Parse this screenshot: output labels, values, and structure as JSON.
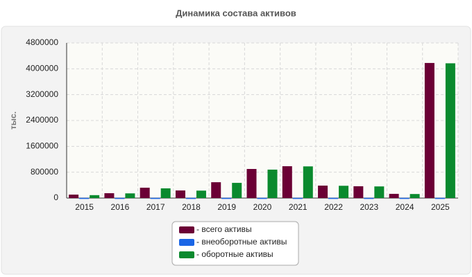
{
  "chart_data": {
    "type": "bar",
    "title": "Динамика состава активов",
    "y_label": "тыс.",
    "categories": [
      "2015",
      "2016",
      "2017",
      "2018",
      "2019",
      "2020",
      "2021",
      "2022",
      "2023",
      "2024",
      "2025"
    ],
    "series": [
      {
        "name": "- всего активы",
        "color": "#6b0035",
        "values": [
          107000,
          150000,
          320000,
          235000,
          490000,
          900000,
          985000,
          385000,
          365000,
          130000,
          4180000
        ]
      },
      {
        "name": "- внеоборотные активы",
        "color": "#1a66e6",
        "values": [
          5000,
          5000,
          5000,
          5000,
          5000,
          5000,
          5000,
          5000,
          5000,
          5000,
          5000
        ]
      },
      {
        "name": "- оборотные активы",
        "color": "#0a8a2e",
        "values": [
          90000,
          145000,
          300000,
          230000,
          470000,
          880000,
          980000,
          380000,
          360000,
          125000,
          4170000
        ]
      }
    ],
    "ylim": [
      0,
      4800000
    ],
    "yticks": [
      0,
      800000,
      1600000,
      2400000,
      3200000,
      4000000,
      4800000
    ],
    "grid": true
  }
}
